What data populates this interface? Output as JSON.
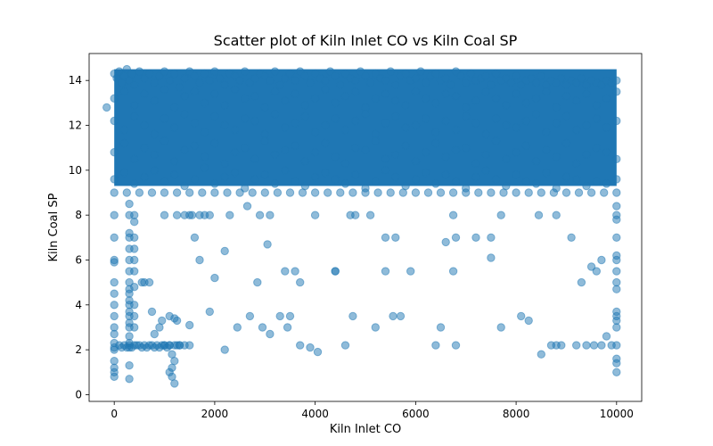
{
  "chart_data": {
    "type": "scatter",
    "title": "Scatter plot of Kiln Inlet CO vs Kiln Coal SP",
    "xlabel": "Kiln Inlet CO",
    "ylabel": "Kiln Coal SP",
    "xlim": [
      -500,
      10500
    ],
    "ylim": [
      -0.3,
      15.2
    ],
    "xticks": [
      0,
      2000,
      4000,
      6000,
      8000,
      10000
    ],
    "yticks": [
      0,
      2,
      4,
      6,
      8,
      10,
      12,
      14
    ],
    "grid": false,
    "legend": "none",
    "marker_color": "#1f77b4",
    "marker_alpha": 0.5,
    "series": [
      {
        "x": [
          0,
          50,
          100,
          150,
          200,
          250,
          300,
          350,
          400,
          500,
          600,
          700,
          800,
          900,
          1000,
          1100,
          1200,
          1300,
          1400,
          1500,
          1600,
          1700,
          1800,
          1900,
          2000,
          2100,
          2200,
          2300,
          2400,
          2500,
          2600,
          2700,
          2800,
          2900,
          3000,
          3100,
          3200,
          3300,
          3400,
          3500,
          3600,
          3700,
          3800,
          3900,
          4000,
          4100,
          4200,
          4300,
          4400,
          4500,
          4600,
          4700,
          4800,
          4900,
          5000,
          5100,
          5200,
          5300,
          5400,
          5500,
          5600,
          5700,
          5800,
          5900,
          6000,
          6100,
          6200,
          6300,
          6400,
          6500,
          6600,
          6700,
          6800,
          6900,
          7000,
          7100,
          7200,
          7300,
          7400,
          7500,
          7600,
          7700,
          7800,
          7900,
          8000,
          8100,
          8200,
          8300,
          8400,
          8500,
          8600,
          8700,
          8800,
          8900,
          9000,
          9100,
          9200,
          9300,
          9400,
          9500,
          9600,
          9700,
          9800,
          9900,
          10000,
          0,
          200,
          400,
          600,
          800,
          1000,
          1200,
          1400,
          1600,
          1800,
          2000,
          2200,
          2400,
          2600,
          2800,
          3000,
          3200,
          3400,
          3600,
          3800,
          4000,
          4200,
          4400,
          4600,
          4800,
          5000,
          5200,
          5400,
          5600,
          5800,
          6000,
          6200,
          6400,
          6600,
          6800,
          7000,
          7200,
          7400,
          7600,
          7800,
          8000,
          8200,
          8400,
          8600,
          8800,
          9000,
          9200,
          9400,
          9600,
          9800,
          10000,
          0,
          200,
          400,
          600,
          800,
          1000,
          1200,
          1400,
          1600,
          1800,
          2000,
          2200,
          2400,
          2600,
          2800,
          3000,
          3200,
          3400,
          3600,
          3800,
          4000,
          4200,
          4400,
          4600,
          4800,
          5000,
          5200,
          5400,
          5600,
          5800,
          6000,
          6200,
          6400,
          6600,
          6800,
          7000,
          7200,
          7400,
          7600,
          7800,
          8000,
          8200,
          8400,
          8600,
          8800,
          9000,
          9200,
          9400,
          9600,
          9800,
          10000,
          0,
          200,
          400,
          600,
          800,
          1000,
          1200,
          1400,
          1600,
          1800,
          2000,
          2200,
          2400,
          2600,
          2800,
          3000,
          3200,
          3400,
          3600,
          3800,
          4000,
          4200,
          4400,
          4600,
          4800,
          5000,
          5200,
          5400,
          5600,
          5800,
          6000,
          6200,
          6400,
          6600,
          6800,
          7000,
          7200,
          7400,
          7600,
          7800,
          8000,
          8200,
          8400,
          8600,
          8800,
          9000,
          9200,
          9400,
          9600,
          9800,
          10000,
          0,
          200,
          400,
          600,
          800,
          1000,
          1200,
          1400,
          1600,
          1800,
          2000,
          2200,
          2400,
          2600,
          2800,
          3000,
          3200,
          3400,
          3600,
          3800,
          4000,
          4200,
          4400,
          4600,
          4800,
          5000,
          5200,
          5400,
          5600,
          5800,
          6000,
          6200,
          6400,
          6600,
          6800,
          7000,
          7200,
          7400,
          7600,
          7800,
          8000,
          8200,
          8400,
          8600,
          8800,
          9000,
          9200,
          9400,
          9600,
          9800,
          10000,
          0,
          250,
          500,
          750,
          1000,
          1250,
          1500,
          1750,
          2000,
          2250,
          2500,
          2750,
          3000,
          3250,
          3500,
          3750,
          4000,
          4250,
          4500,
          4750,
          5000,
          5250,
          5500,
          5750,
          6000,
          6250,
          6500,
          6750,
          7000,
          7250,
          7500,
          7750,
          8000,
          8250,
          8500,
          8750,
          9000,
          9250,
          9500,
          9750,
          10000,
          -150,
          0,
          0,
          0,
          0,
          0,
          0,
          0,
          0,
          0,
          0,
          0,
          0,
          0,
          0,
          0,
          0,
          0,
          300,
          300,
          300,
          300,
          300,
          300,
          300,
          300,
          300,
          300,
          300,
          300,
          300,
          300,
          300,
          300,
          300,
          300,
          300,
          300,
          300,
          400,
          400,
          400,
          400,
          400,
          400,
          400,
          400,
          400,
          400,
          400,
          1100,
          1150,
          1200,
          1150,
          1100,
          1150,
          1200,
          1000,
          1250,
          1300,
          10000,
          10000,
          10000,
          10000,
          10000,
          10000,
          10000,
          10000,
          10000,
          10000,
          10000,
          10000,
          10000,
          10000,
          10000,
          10000,
          10000,
          100,
          150,
          200,
          250,
          300,
          350,
          450,
          500,
          550,
          600,
          650,
          700,
          750,
          800,
          850,
          900,
          950,
          1000,
          1050,
          1100,
          1200,
          1300,
          1400,
          1500,
          550,
          600,
          700,
          1000,
          1250,
          1400,
          1500,
          1550,
          1700,
          1800,
          1900,
          2200,
          2300,
          2650,
          2900,
          3050,
          3100,
          3400,
          3600,
          3700,
          4000,
          4400,
          4700,
          4800,
          5100,
          5400,
          5600,
          5900,
          6500,
          6600,
          6750,
          6800,
          7500,
          7700,
          8100,
          8450,
          8800,
          9100,
          9300,
          9500,
          9600,
          9700,
          9800,
          750,
          800,
          900,
          950,
          1100,
          1200,
          1250,
          1500,
          1600,
          1700,
          1900,
          2000,
          2200,
          2450,
          2700,
          2850,
          2950,
          3100,
          3300,
          3450,
          3500,
          3700,
          3900,
          4050,
          4400,
          4600,
          4750,
          5200,
          5400,
          5550,
          5700,
          6400,
          6750,
          6800,
          7200,
          7500,
          7700,
          8250,
          8500,
          8700,
          8800,
          8900,
          9200,
          9400,
          9550,
          9700,
          9900
        ],
        "y": [
          14.3,
          14.1,
          14.4,
          13.9,
          14.2,
          14.5,
          14.0,
          14.3,
          13.8,
          14.4,
          14.1,
          14.3,
          13.9,
          14.2,
          14.4,
          14.0,
          14.3,
          13.7,
          14.1,
          14.4,
          14.2,
          13.9,
          14.3,
          14.0,
          14.4,
          14.1,
          13.8,
          14.3,
          14.2,
          14.0,
          14.4,
          13.9,
          14.1,
          14.3,
          14.2,
          14.0,
          14.4,
          13.8,
          14.1,
          14.3,
          14.0,
          14.4,
          14.2,
          13.9,
          14.3,
          14.1,
          14.0,
          14.4,
          14.2,
          13.8,
          14.3,
          14.1,
          14.0,
          14.4,
          14.2,
          13.9,
          14.3,
          14.1,
          14.0,
          14.4,
          13.8,
          14.2,
          14.3,
          14.0,
          14.1,
          14.4,
          13.9,
          14.2,
          14.3,
          14.0,
          14.1,
          13.8,
          14.4,
          14.2,
          13.9,
          14.3,
          14.0,
          14.1,
          14.2,
          13.8,
          14.3,
          14.0,
          14.1,
          13.9,
          14.2,
          13.8,
          14.0,
          14.1,
          13.9,
          14.2,
          13.8,
          14.0,
          13.9,
          14.1,
          13.8,
          14.0,
          13.9,
          14.1,
          13.8,
          14.0,
          13.9,
          13.8,
          14.0,
          13.9,
          14.0,
          13.2,
          13.5,
          12.9,
          13.4,
          13.1,
          13.6,
          12.8,
          13.3,
          13.5,
          13.0,
          13.4,
          12.9,
          13.6,
          13.2,
          13.3,
          12.8,
          13.5,
          13.1,
          13.4,
          12.9,
          13.2,
          13.6,
          13.0,
          13.3,
          13.5,
          12.8,
          13.2,
          13.4,
          13.1,
          12.9,
          13.5,
          13.2,
          13.0,
          13.4,
          13.3,
          12.8,
          13.1,
          13.5,
          13.2,
          12.9,
          13.4,
          13.0,
          13.2,
          13.5,
          12.8,
          13.3,
          13.1,
          13.4,
          12.9,
          13.2,
          13.5,
          12.2,
          11.8,
          12.4,
          12.0,
          11.6,
          12.3,
          11.9,
          12.5,
          12.1,
          11.7,
          12.4,
          12.0,
          11.8,
          12.3,
          12.2,
          11.6,
          12.5,
          11.9,
          12.1,
          12.4,
          11.7,
          12.0,
          12.3,
          11.8,
          12.2,
          12.5,
          11.6,
          12.1,
          12.4,
          11.9,
          12.0,
          12.3,
          11.7,
          12.2,
          11.8,
          12.4,
          12.1,
          11.6,
          12.3,
          12.0,
          11.9,
          12.2,
          12.5,
          11.7,
          12.1,
          12.4,
          11.8,
          12.0,
          12.3,
          11.9,
          12.2,
          10.8,
          11.2,
          10.5,
          11.0,
          10.7,
          11.3,
          10.4,
          10.9,
          11.1,
          10.6,
          11.2,
          10.3,
          10.8,
          11.0,
          10.5,
          11.3,
          10.7,
          10.9,
          11.1,
          10.4,
          10.8,
          11.2,
          10.6,
          10.3,
          11.0,
          10.9,
          11.3,
          10.5,
          10.7,
          11.1,
          10.4,
          10.8,
          11.2,
          10.6,
          10.9,
          11.0,
          10.3,
          10.7,
          11.3,
          10.5,
          10.8,
          11.1,
          10.4,
          10.9,
          10.6,
          11.2,
          10.3,
          10.7,
          11.0,
          10.8,
          10.5,
          9.6,
          9.9,
          9.4,
          9.7,
          10.0,
          9.5,
          9.8,
          9.3,
          9.6,
          10.1,
          9.4,
          9.7,
          9.9,
          9.2,
          9.6,
          9.8,
          9.4,
          10.0,
          9.5,
          9.3,
          9.7,
          9.9,
          9.6,
          9.4,
          9.8,
          9.2,
          9.5,
          10.0,
          9.7,
          9.3,
          9.6,
          9.9,
          9.4,
          9.8,
          9.5,
          9.2,
          9.7,
          10.0,
          9.6,
          9.3,
          9.8,
          9.5,
          9.4,
          9.9,
          9.2,
          9.7,
          9.6,
          9.3,
          9.5,
          9.4,
          9.6,
          9.0,
          9.0,
          9.0,
          9.0,
          9.0,
          9.0,
          9.0,
          9.0,
          9.0,
          9.0,
          9.0,
          9.0,
          9.0,
          9.0,
          9.0,
          9.0,
          9.0,
          9.0,
          9.0,
          9.0,
          9.0,
          9.0,
          9.0,
          9.0,
          9.0,
          9.0,
          9.0,
          9.0,
          9.0,
          9.0,
          9.0,
          9.0,
          9.0,
          9.0,
          9.0,
          9.0,
          9.0,
          9.0,
          9.0,
          9.0,
          9.0,
          12.8,
          8.0,
          7.0,
          6.0,
          5.9,
          5.0,
          4.5,
          4.0,
          3.5,
          3.0,
          2.7,
          2.3,
          2.0,
          1.5,
          1.2,
          1.0,
          0.8,
          2.1,
          8.5,
          8.0,
          7.2,
          7.0,
          6.5,
          6.0,
          5.5,
          5.0,
          4.7,
          4.5,
          4.2,
          4.0,
          3.7,
          3.5,
          3.2,
          3.0,
          2.6,
          2.3,
          2.1,
          1.3,
          0.7,
          8.0,
          7.7,
          7.0,
          6.5,
          6.0,
          5.5,
          4.8,
          4.0,
          3.5,
          3.0,
          2.2,
          2.2,
          1.8,
          1.5,
          1.2,
          1.0,
          0.8,
          0.5,
          2.2,
          2.2,
          2.2,
          8.4,
          8.0,
          7.8,
          7.0,
          6.2,
          6.0,
          5.5,
          5.0,
          4.7,
          3.7,
          3.5,
          3.3,
          3.0,
          2.2,
          1.6,
          1.4,
          1.0,
          2.2,
          2.1,
          2.2,
          2.1,
          2.2,
          2.1,
          2.2,
          2.2,
          2.1,
          2.2,
          2.1,
          2.2,
          2.2,
          2.1,
          2.2,
          2.1,
          2.2,
          2.2,
          2.1,
          2.2,
          2.2,
          2.2,
          2.2,
          2.2,
          5.0,
          5.0,
          5.0,
          8.0,
          8.0,
          8.0,
          8.0,
          8.0,
          8.0,
          8.0,
          8.0,
          6.4,
          8.0,
          8.4,
          8.0,
          6.7,
          8.0,
          5.5,
          5.5,
          5.0,
          8.0,
          5.5,
          8.0,
          8.0,
          8.0,
          5.5,
          7.0,
          5.5,
          3.0,
          6.8,
          8.0,
          7.0,
          7.0,
          8.0,
          3.5,
          8.0,
          8.0,
          7.0,
          5.0,
          5.7,
          5.5,
          6.0,
          2.6,
          3.7,
          2.7,
          3.0,
          3.3,
          3.5,
          3.4,
          3.3,
          3.1,
          7.0,
          6.0,
          3.7,
          5.2,
          2.0,
          3.0,
          3.5,
          5.0,
          3.0,
          2.7,
          3.5,
          3.0,
          3.5,
          2.2,
          2.1,
          1.9,
          5.5,
          2.2,
          3.5,
          3.0,
          7.0,
          3.5,
          3.5,
          2.2,
          5.5,
          2.2,
          7.0,
          6.1,
          3.0,
          3.3,
          1.8,
          2.2,
          2.2,
          2.2,
          2.2,
          2.2,
          2.2,
          2.2,
          2.2
        ]
      }
    ]
  }
}
